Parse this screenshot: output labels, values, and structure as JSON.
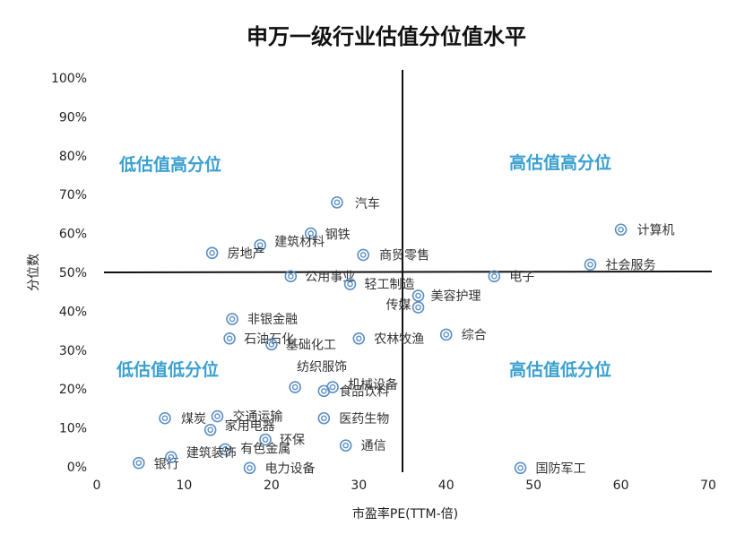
{
  "colors": {
    "marker": "#5b8fc4",
    "quadrant_text": "#3aa0cf",
    "axis": "#111111"
  },
  "chart_data": {
    "type": "scatter",
    "title": "申万一级行业估值分位值水平",
    "xlabel": "市盈率PE(TTM-倍)",
    "ylabel": "分位数",
    "xlim": [
      0,
      70
    ],
    "ylim": [
      0,
      1
    ],
    "x_ticks": [
      "0",
      "10",
      "20",
      "30",
      "40",
      "50",
      "60",
      "70"
    ],
    "y_ticks": [
      "0%",
      "10%",
      "20%",
      "30%",
      "40%",
      "50%",
      "60%",
      "70%",
      "80%",
      "90%",
      "100%"
    ],
    "grid": false,
    "reference_lines": {
      "x": 35,
      "y": 0.5
    },
    "quadrant_labels": [
      {
        "text": "低估值高分位",
        "position": "top-left"
      },
      {
        "text": "高估值高分位",
        "position": "top-right"
      },
      {
        "text": "低估值低分位",
        "position": "bottom-left"
      },
      {
        "text": "高估值低分位",
        "position": "bottom-right"
      }
    ],
    "points": [
      {
        "name": "汽车",
        "x": 27.5,
        "y": 0.68
      },
      {
        "name": "钢铁",
        "x": 24.5,
        "y": 0.6
      },
      {
        "name": "计算机",
        "x": 60.0,
        "y": 0.61
      },
      {
        "name": "建筑材料",
        "x": 18.7,
        "y": 0.57
      },
      {
        "name": "房地产",
        "x": 13.2,
        "y": 0.55
      },
      {
        "name": "商贸零售",
        "x": 30.5,
        "y": 0.545
      },
      {
        "name": "社会服务",
        "x": 56.5,
        "y": 0.52
      },
      {
        "name": "公用事业",
        "x": 22.2,
        "y": 0.49
      },
      {
        "name": "电子",
        "x": 45.5,
        "y": 0.49
      },
      {
        "name": "轻工制造",
        "x": 29.0,
        "y": 0.47
      },
      {
        "name": "美容护理",
        "x": 36.8,
        "y": 0.44
      },
      {
        "name": "传媒",
        "x": 36.8,
        "y": 0.41
      },
      {
        "name": "非银金融",
        "x": 15.5,
        "y": 0.38
      },
      {
        "name": "石油石化",
        "x": 15.2,
        "y": 0.33
      },
      {
        "name": "基础化工",
        "x": 20.0,
        "y": 0.315
      },
      {
        "name": "农林牧渔",
        "x": 30.0,
        "y": 0.33
      },
      {
        "name": "综合",
        "x": 40.0,
        "y": 0.34
      },
      {
        "name": "纺织服饰",
        "x": 22.7,
        "y": 0.205
      },
      {
        "name": "机械设备",
        "x": 27.0,
        "y": 0.205
      },
      {
        "name": "食品饮料",
        "x": 26.0,
        "y": 0.195
      },
      {
        "name": "煤炭",
        "x": 7.8,
        "y": 0.125
      },
      {
        "name": "交通运输",
        "x": 13.8,
        "y": 0.13
      },
      {
        "name": "医药生物",
        "x": 26.0,
        "y": 0.125
      },
      {
        "name": "家用电器",
        "x": 13.0,
        "y": 0.095
      },
      {
        "name": "环保",
        "x": 19.3,
        "y": 0.07
      },
      {
        "name": "通信",
        "x": 28.5,
        "y": 0.055
      },
      {
        "name": "有色金属",
        "x": 14.7,
        "y": 0.045
      },
      {
        "name": "银行",
        "x": 4.8,
        "y": 0.01
      },
      {
        "name": "建筑装饰",
        "x": 8.5,
        "y": 0.025
      },
      {
        "name": "电力设备",
        "x": 17.5,
        "y": -0.003
      },
      {
        "name": "国防军工",
        "x": 48.5,
        "y": -0.003
      }
    ]
  }
}
